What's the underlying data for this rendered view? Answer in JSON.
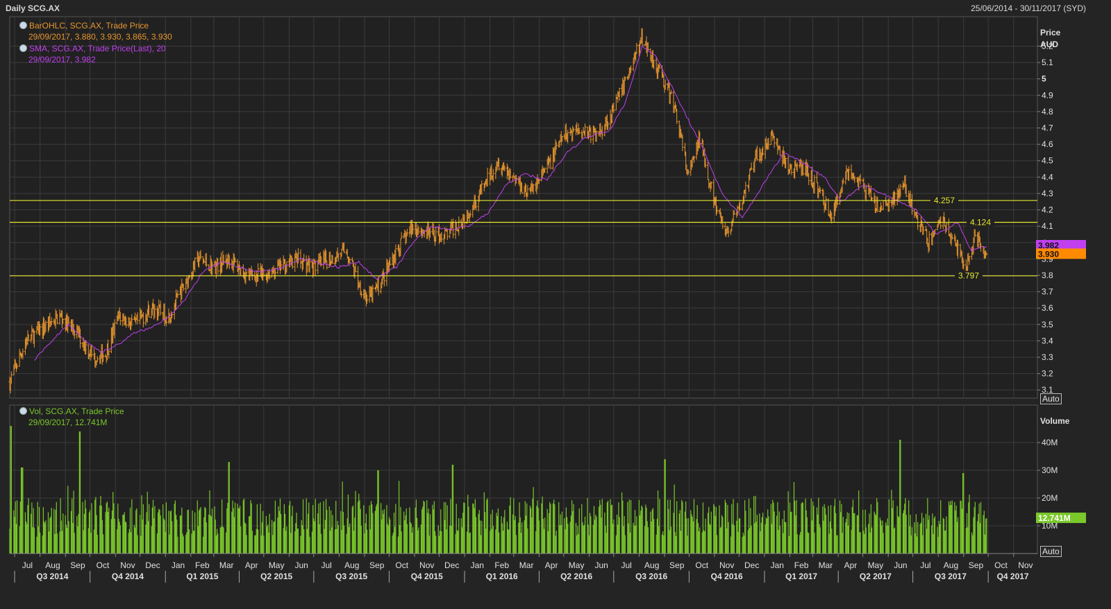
{
  "header": {
    "title": "Daily SCG.AX",
    "range": "25/06/2014 - 30/11/2017 (SYD)"
  },
  "legends": {
    "ohlc_name": "BarOHLC, SCG.AX, Trade Price",
    "ohlc_values": "29/09/2017, 3.880, 3.930, 3.865, 3.930",
    "sma_name": "SMA, SCG.AX, Trade Price(Last),  20",
    "sma_values": "29/09/2017, 3.982",
    "vol_name": "Vol, SCG.AX, Trade Price",
    "vol_values": "29/09/2017, 12.741M"
  },
  "price_axis": {
    "title_line1": "Price",
    "title_line2": "AUD",
    "ticks": [
      "3.1",
      "3.2",
      "3.3",
      "3.4",
      "3.5",
      "3.6",
      "3.7",
      "3.8",
      "3.9",
      "4",
      "4.1",
      "4.2",
      "4.3",
      "4.4",
      "4.5",
      "4.6",
      "4.7",
      "4.8",
      "4.9",
      "5",
      "5.1",
      "5.2"
    ],
    "auto_label": "Auto"
  },
  "volume_axis": {
    "title": "Volume",
    "ticks": [
      "10M",
      "20M",
      "30M",
      "40M"
    ],
    "auto_label": "Auto"
  },
  "time_axis": {
    "months": [
      "Jul",
      "Aug",
      "Sep",
      "Oct",
      "Nov",
      "Dec",
      "Jan",
      "Feb",
      "Mar",
      "Apr",
      "May",
      "Jun",
      "Jul",
      "Aug",
      "Sep",
      "Oct",
      "Nov",
      "Dec",
      "Jan",
      "Feb",
      "Mar",
      "Apr",
      "May",
      "Jun",
      "Jul",
      "Aug",
      "Sep",
      "Oct",
      "Nov",
      "Dec",
      "Jan",
      "Feb",
      "Mar",
      "Apr",
      "May",
      "Jun",
      "Jul",
      "Aug",
      "Sep",
      "Oct",
      "Nov"
    ],
    "quarters": [
      "Q3 2014",
      "Q4 2014",
      "Q1 2015",
      "Q2 2015",
      "Q3 2015",
      "Q4 2015",
      "Q1 2016",
      "Q2 2016",
      "Q3 2016",
      "Q4 2016",
      "Q1 2017",
      "Q2 2017",
      "Q3 2017",
      "Q4 2017"
    ]
  },
  "colors": {
    "bars": "#e8962e",
    "sma": "#c040f0",
    "volume": "#7ac82a",
    "hline": "#e6e632",
    "grid": "#3c3c3c"
  },
  "chart_data": {
    "type": "line",
    "title": "Daily SCG.AX",
    "price_ylim": [
      3.05,
      5.38
    ],
    "volume_ylim": [
      0,
      50
    ],
    "price_series": {
      "name": "BarOHLC, SCG.AX, Trade Price",
      "dates": [
        "2014-06-25",
        "2014-07-15",
        "2014-08-10",
        "2014-08-25",
        "2014-09-15",
        "2014-10-05",
        "2014-10-20",
        "2014-11-05",
        "2014-11-25",
        "2014-12-15",
        "2015-01-05",
        "2015-01-25",
        "2015-02-10",
        "2015-03-01",
        "2015-03-20",
        "2015-04-10",
        "2015-04-30",
        "2015-05-20",
        "2015-06-10",
        "2015-06-30",
        "2015-07-20",
        "2015-08-10",
        "2015-08-25",
        "2015-09-05",
        "2015-09-20",
        "2015-10-10",
        "2015-10-30",
        "2015-11-20",
        "2015-12-10",
        "2015-12-31",
        "2016-01-20",
        "2016-02-10",
        "2016-03-01",
        "2016-03-20",
        "2016-04-10",
        "2016-04-30",
        "2016-05-20",
        "2016-06-10",
        "2016-06-30",
        "2016-07-20",
        "2016-08-05",
        "2016-08-15",
        "2016-08-30",
        "2016-09-15",
        "2016-09-30",
        "2016-10-15",
        "2016-10-31",
        "2016-11-15",
        "2016-12-01",
        "2016-12-20",
        "2017-01-10",
        "2017-01-30",
        "2017-02-20",
        "2017-03-10",
        "2017-03-25",
        "2017-04-10",
        "2017-04-30",
        "2017-05-20",
        "2017-06-05",
        "2017-06-20",
        "2017-07-05",
        "2017-07-20",
        "2017-08-05",
        "2017-08-20",
        "2017-09-05",
        "2017-09-15",
        "2017-09-29"
      ],
      "close": [
        3.15,
        3.4,
        3.5,
        3.55,
        3.45,
        3.3,
        3.32,
        3.55,
        3.5,
        3.6,
        3.55,
        3.75,
        3.9,
        3.85,
        3.9,
        3.8,
        3.8,
        3.85,
        3.9,
        3.85,
        3.9,
        3.95,
        3.75,
        3.65,
        3.75,
        3.95,
        4.1,
        4.05,
        4.05,
        4.15,
        4.3,
        4.5,
        4.4,
        4.3,
        4.45,
        4.65,
        4.7,
        4.65,
        4.8,
        5.05,
        5.25,
        5.15,
        5.0,
        4.8,
        4.4,
        4.65,
        4.25,
        4.05,
        4.2,
        4.5,
        4.65,
        4.45,
        4.45,
        4.3,
        4.15,
        4.45,
        4.35,
        4.2,
        4.25,
        4.35,
        4.15,
        4.0,
        4.15,
        4.0,
        3.85,
        4.05,
        3.93
      ]
    },
    "sma_series": {
      "name": "SMA, SCG.AX, Trade Price(Last),  20",
      "dates": [
        "2014-07-25",
        "2014-08-15",
        "2014-09-05",
        "2014-09-25",
        "2014-10-15",
        "2014-11-05",
        "2014-11-25",
        "2014-12-15",
        "2015-01-05",
        "2015-01-25",
        "2015-02-15",
        "2015-03-10",
        "2015-04-01",
        "2015-04-25",
        "2015-05-20",
        "2015-06-15",
        "2015-07-05",
        "2015-07-30",
        "2015-08-25",
        "2015-09-15",
        "2015-10-10",
        "2015-10-30",
        "2015-11-20",
        "2015-12-15",
        "2016-01-05",
        "2016-01-30",
        "2016-02-20",
        "2016-03-15",
        "2016-04-10",
        "2016-05-05",
        "2016-05-30",
        "2016-06-25",
        "2016-07-15",
        "2016-08-05",
        "2016-08-20",
        "2016-09-10",
        "2016-09-30",
        "2016-10-20",
        "2016-11-10",
        "2016-12-05",
        "2017-01-05",
        "2017-01-25",
        "2017-02-20",
        "2017-03-15",
        "2017-04-05",
        "2017-04-30",
        "2017-05-25",
        "2017-06-15",
        "2017-07-05",
        "2017-07-30",
        "2017-08-25",
        "2017-09-10",
        "2017-09-29"
      ],
      "values": [
        3.28,
        3.4,
        3.5,
        3.4,
        3.33,
        3.38,
        3.45,
        3.48,
        3.55,
        3.65,
        3.82,
        3.88,
        3.85,
        3.82,
        3.84,
        3.9,
        3.88,
        3.85,
        3.88,
        3.78,
        3.85,
        4.0,
        4.1,
        4.08,
        4.1,
        4.18,
        4.35,
        4.42,
        4.38,
        4.55,
        4.65,
        4.68,
        4.85,
        5.2,
        5.15,
        4.95,
        4.75,
        4.55,
        4.3,
        4.15,
        4.4,
        4.55,
        4.48,
        4.4,
        4.25,
        4.35,
        4.3,
        4.25,
        4.2,
        4.05,
        4.12,
        3.95,
        3.982
      ]
    },
    "volume_series": {
      "name": "Vol, SCG.AX, Trade Price",
      "unit": "M",
      "last": 12.741,
      "spikes": [
        {
          "date": "2014-06-27",
          "value": 46
        },
        {
          "date": "2014-07-10",
          "value": 31
        },
        {
          "date": "2014-09-19",
          "value": 44
        },
        {
          "date": "2015-03-20",
          "value": 33
        },
        {
          "date": "2015-09-18",
          "value": 30
        },
        {
          "date": "2015-12-18",
          "value": 32
        },
        {
          "date": "2016-09-02",
          "value": 34
        },
        {
          "date": "2017-06-16",
          "value": 41
        },
        {
          "date": "2017-09-01",
          "value": 29
        }
      ],
      "typical_range": [
        6,
        20
      ]
    },
    "horizontal_levels": [
      {
        "value": 4.257,
        "label": "4.257"
      },
      {
        "value": 4.124,
        "label": "4.124"
      },
      {
        "value": 3.797,
        "label": "3.797"
      }
    ],
    "last_price_labels": [
      {
        "value": 3.982,
        "label": "3.982",
        "color": "#c040f0"
      },
      {
        "value": 3.93,
        "label": "3.930",
        "color": "#ff8a00"
      }
    ],
    "last_volume_label": {
      "value": 12.741,
      "label": "12.741M"
    },
    "x_range": [
      "2014-06-25",
      "2017-11-30"
    ]
  }
}
